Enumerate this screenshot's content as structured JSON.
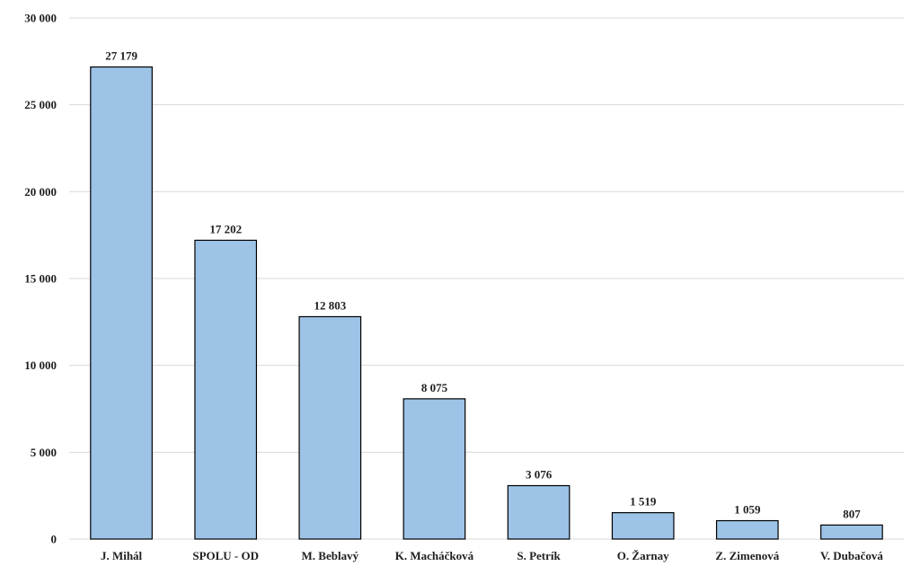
{
  "chart_data": {
    "type": "bar",
    "categories": [
      "J. Mihál",
      "SPOLU - OD",
      "M. Beblavý",
      "K. Macháčková",
      "S. Petrík",
      "O. Žarnay",
      "Z. Zimenová",
      "V. Dubačová"
    ],
    "values": [
      27179,
      17202,
      12803,
      8075,
      3076,
      1519,
      1059,
      807
    ],
    "data_labels": [
      "27 179",
      "17 202",
      "12 803",
      "8 075",
      "3 076",
      "1 519",
      "1 059",
      "807"
    ],
    "title": "",
    "xlabel": "",
    "ylabel": "",
    "ylim": [
      0,
      30000
    ],
    "yticks": [
      0,
      5000,
      10000,
      15000,
      20000,
      25000,
      30000
    ],
    "ytick_labels": [
      "0",
      "5 000",
      "10 000",
      "15 000",
      "20 000",
      "25 000",
      "30 000"
    ],
    "grid": true,
    "legend": "none",
    "bar_color": "#9dc3e6",
    "bar_edge_color": "#000000",
    "grid_color": "#d9d9d9"
  }
}
